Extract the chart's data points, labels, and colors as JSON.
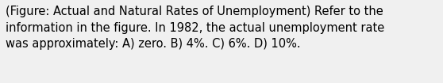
{
  "line1": "(Figure: Actual and Natural Rates of Unemployment) Refer to the",
  "line2": "information in the figure. In 1982, the actual unemployment rate",
  "line3": "was approximately: A) zero. B) 4%. C) 6%. D) 10%.",
  "background_color": "#f0f0f0",
  "text_color": "#000000",
  "font_size": 10.5,
  "fig_width": 5.58,
  "fig_height": 1.05,
  "dpi": 100
}
